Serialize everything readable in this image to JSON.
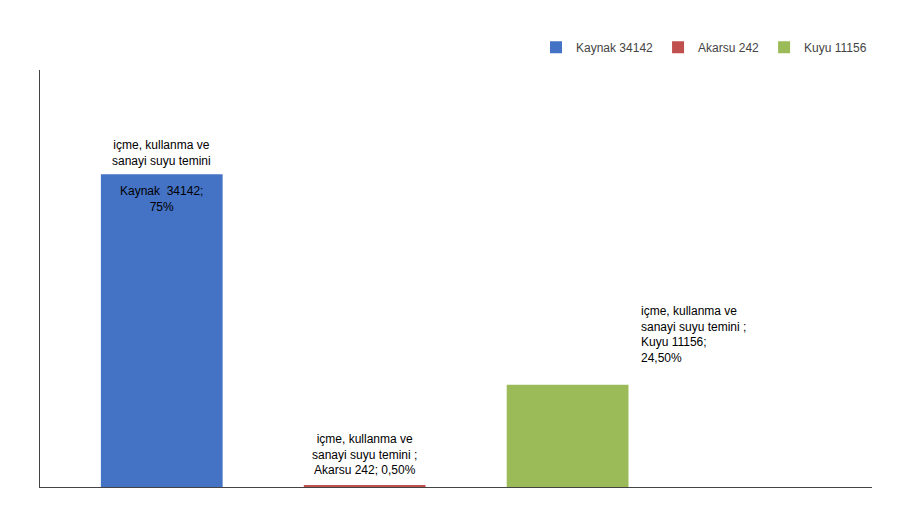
{
  "chart_data": {
    "type": "bar",
    "categories": [
      null,
      null,
      null
    ],
    "series": [
      {
        "name": "Kaynak 34142",
        "color": "#4472C4",
        "values": [
          75.0,
          null,
          null
        ]
      },
      {
        "name": "Akarsu 242",
        "color": "#C0504D",
        "values": [
          null,
          0.5,
          null
        ]
      },
      {
        "name": "Kuyu 11156",
        "color": "#9BBB59",
        "values": [
          null,
          null,
          24.5
        ]
      }
    ],
    "annotations": [
      "içme, kullanma ve\nsanayi suyu temini",
      "Kaynak  34142;\n75%",
      "içme, kullanma ve\nsanayi suyu temini ;\nAkarsu 242; 0,50%",
      "içme, kullanma ve\nsanayi suyu temini ;\nKuyu 11156;\n24,50%"
    ],
    "ylim": [
      0,
      100
    ],
    "grid": false,
    "tick_labels": false,
    "legend": "top"
  }
}
